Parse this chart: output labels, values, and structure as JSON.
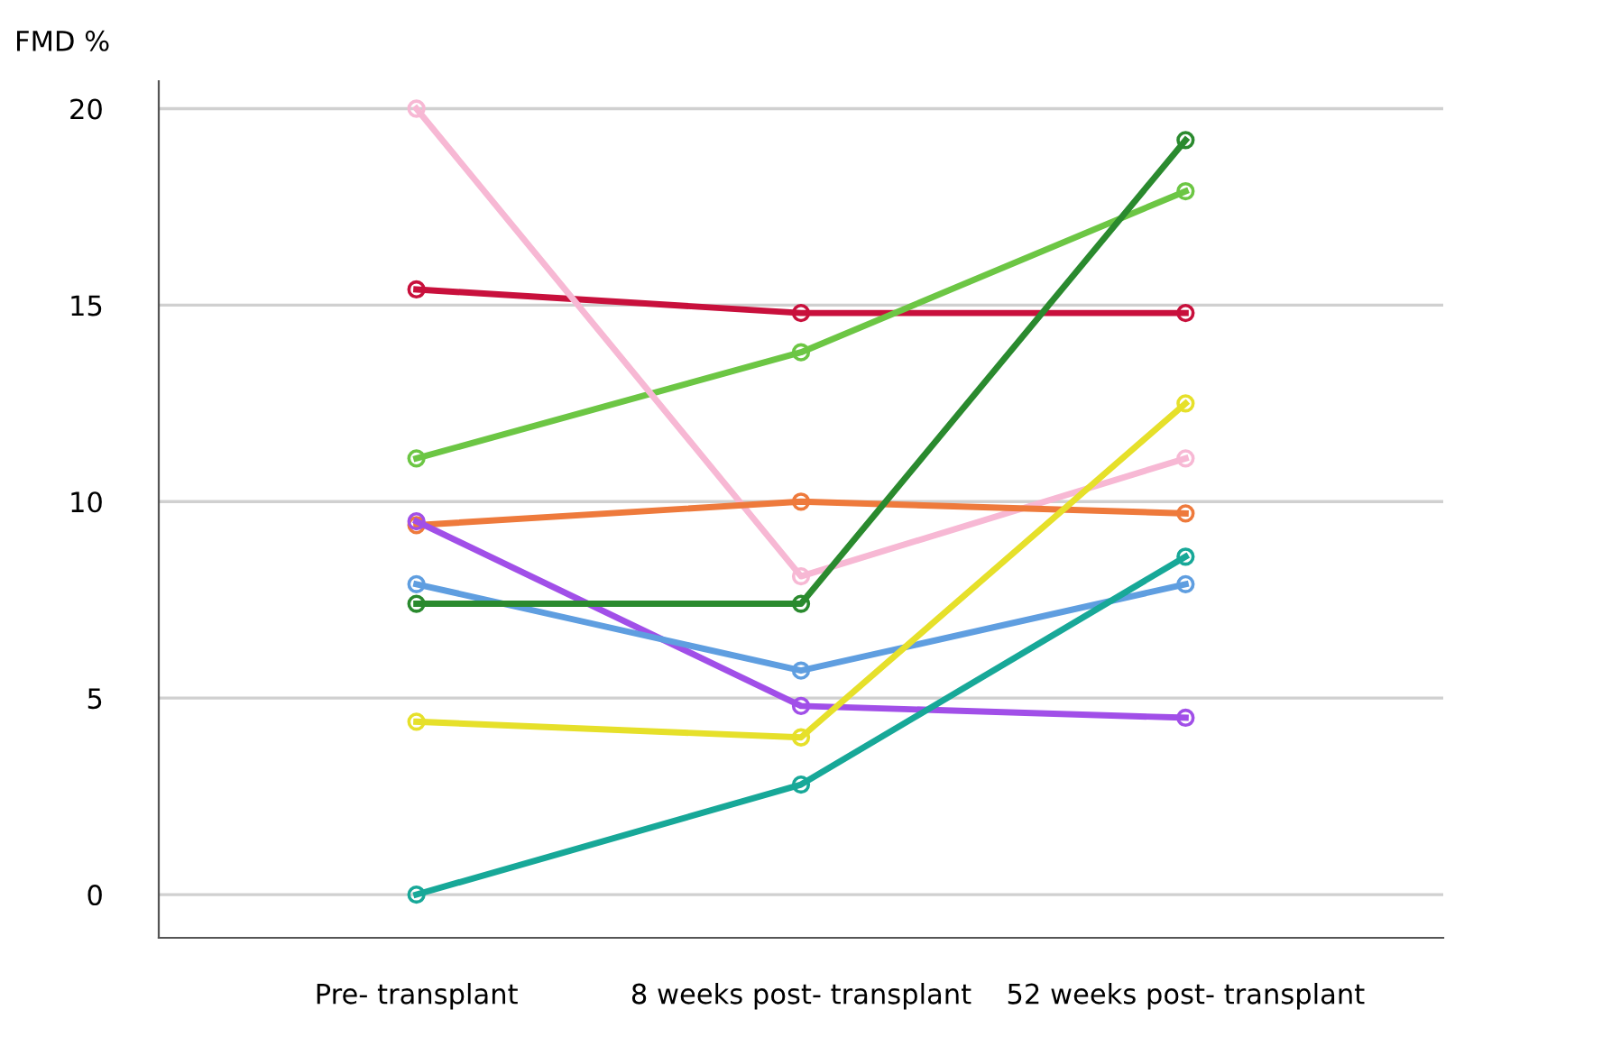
{
  "chart_data": {
    "type": "line",
    "ylabel": "FMD %",
    "categories": [
      "Pre- transplant",
      "8 weeks post- transplant",
      "52 weeks post- transplant"
    ],
    "series": [
      {
        "color": "#c8103c",
        "values": [
          15.4,
          14.8,
          14.8
        ]
      },
      {
        "color": "#6cc644",
        "values": [
          11.1,
          13.8,
          17.9
        ]
      },
      {
        "color": "#f7b8d4",
        "values": [
          20,
          8.1,
          11.1
        ]
      },
      {
        "color": "#ee7a3c",
        "values": [
          9.4,
          10.0,
          9.7
        ]
      },
      {
        "color": "#a14fe8",
        "values": [
          9.5,
          4.8,
          4.5
        ]
      },
      {
        "color": "#5f9ee0",
        "values": [
          7.9,
          5.7,
          7.9
        ]
      },
      {
        "color": "#2a8a2e",
        "values": [
          7.4,
          7.4,
          19.2
        ]
      },
      {
        "color": "#e6e02a",
        "values": [
          4.4,
          4.0,
          12.5
        ]
      },
      {
        "color": "#17a898",
        "values": [
          0,
          2.8,
          8.6
        ]
      }
    ],
    "ylim": [
      -1.1,
      20.7
    ],
    "yticks": [
      0,
      5,
      10,
      15,
      20
    ],
    "grid": "y",
    "marker": "circle",
    "line_style": "solid"
  }
}
